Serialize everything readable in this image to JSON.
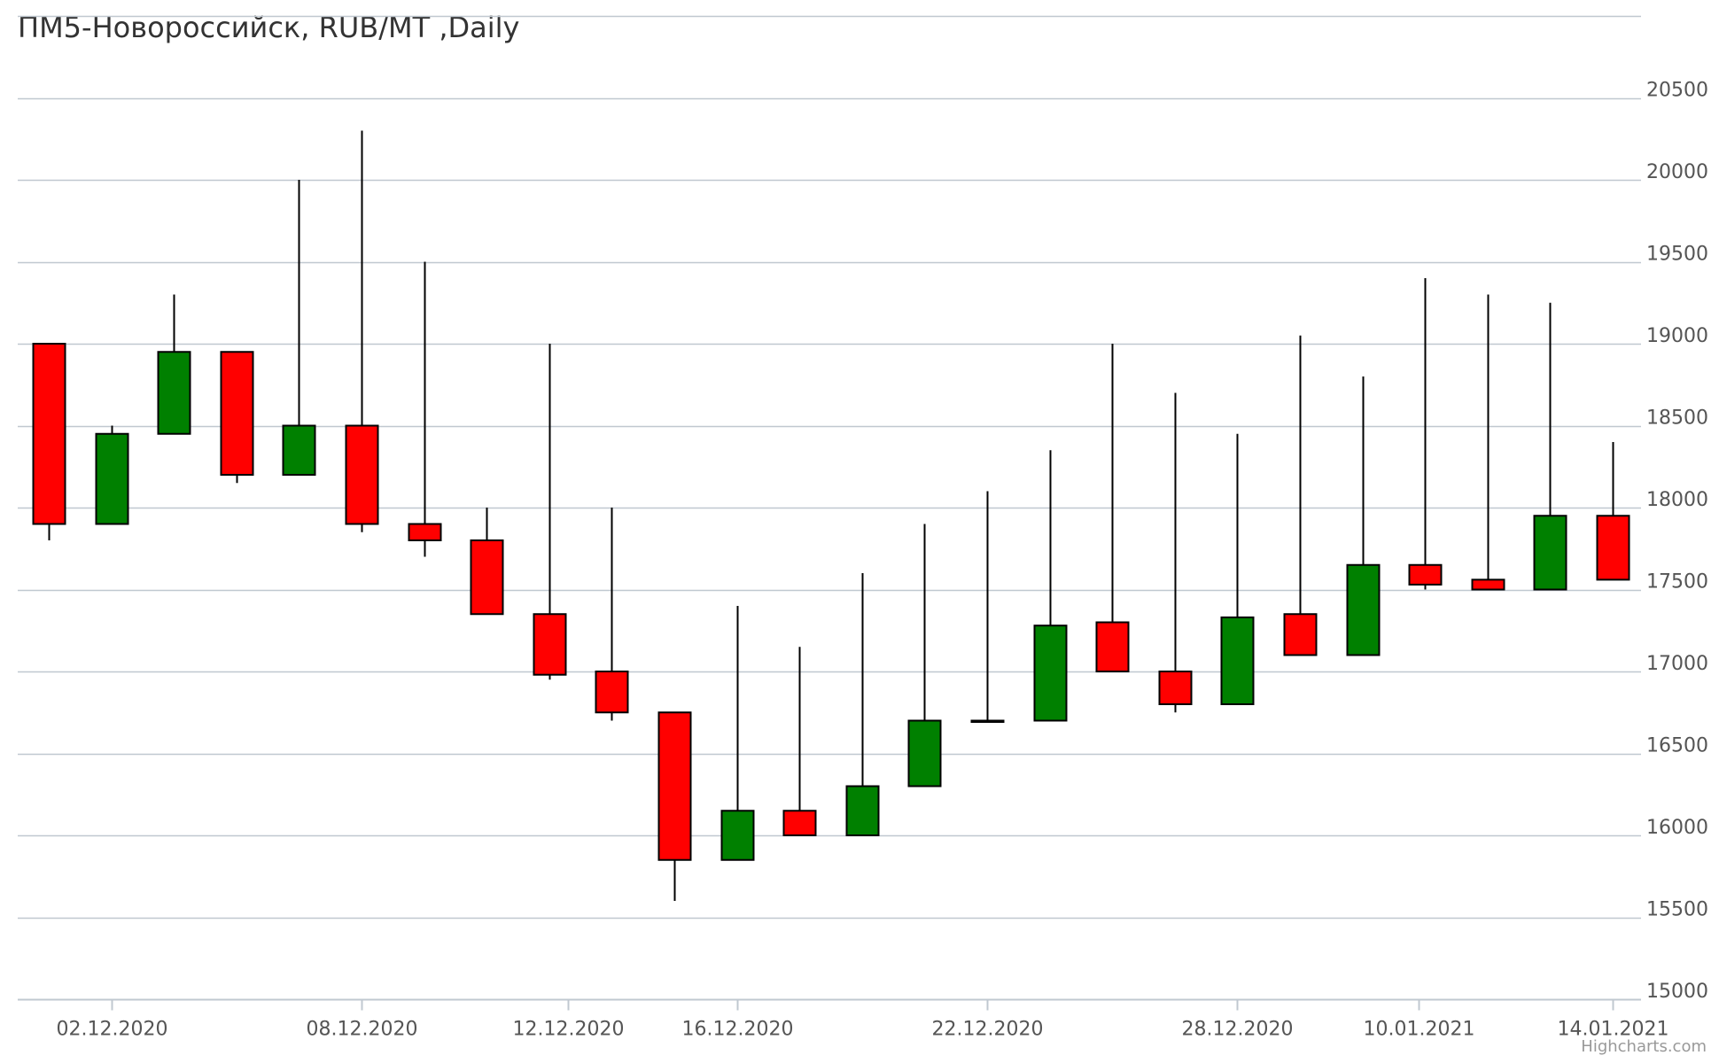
{
  "chart_data": {
    "type": "candlestick",
    "title": "ПМ5-Новороссийск, RUB/MT ,Daily",
    "credits": "Highcharts.com",
    "y_axis": {
      "min": 15000,
      "max": 21000,
      "ticks": [
        15000,
        15500,
        16000,
        16500,
        17000,
        17500,
        18000,
        18500,
        19000,
        19500,
        20000,
        20500
      ],
      "position": "right",
      "grid": true
    },
    "x_axis": {
      "ticks": [
        {
          "label": "02.12.2020",
          "index": 1
        },
        {
          "label": "08.12.2020",
          "index": 5
        },
        {
          "label": "12.12.2020",
          "index": 8.3
        },
        {
          "label": "16.12.2020",
          "index": 11
        },
        {
          "label": "22.12.2020",
          "index": 15
        },
        {
          "label": "28.12.2020",
          "index": 19
        },
        {
          "label": "10.01.2021",
          "index": 21.9
        },
        {
          "label": "14.01.2021",
          "index": 25
        }
      ]
    },
    "colors": {
      "up": "#008000",
      "down": "#ff0000",
      "line": "#000000",
      "grid": "#c0c8d0"
    },
    "candles": [
      {
        "open": 19000,
        "high": 19000,
        "low": 17800,
        "close": 17900
      },
      {
        "open": 17900,
        "high": 18500,
        "low": 17900,
        "close": 18450
      },
      {
        "open": 18450,
        "high": 19300,
        "low": 18450,
        "close": 18950
      },
      {
        "open": 18950,
        "high": 18950,
        "low": 18150,
        "close": 18200
      },
      {
        "open": 18200,
        "high": 20000,
        "low": 18200,
        "close": 18500
      },
      {
        "open": 18500,
        "high": 20300,
        "low": 17850,
        "close": 17900
      },
      {
        "open": 17900,
        "high": 19500,
        "low": 17700,
        "close": 17800
      },
      {
        "open": 17800,
        "high": 18000,
        "low": 17350,
        "close": 17350
      },
      {
        "open": 17350,
        "high": 19000,
        "low": 16950,
        "close": 16980
      },
      {
        "open": 17000,
        "high": 18000,
        "low": 16700,
        "close": 16750
      },
      {
        "open": 16750,
        "high": 16750,
        "low": 15600,
        "close": 15850
      },
      {
        "open": 15850,
        "high": 17400,
        "low": 15850,
        "close": 16150
      },
      {
        "open": 16150,
        "high": 17150,
        "low": 16000,
        "close": 16000
      },
      {
        "open": 16000,
        "high": 17600,
        "low": 16000,
        "close": 16300
      },
      {
        "open": 16300,
        "high": 17900,
        "low": 16300,
        "close": 16700
      },
      {
        "open": 16700,
        "high": 18100,
        "low": 16700,
        "close": 16700
      },
      {
        "open": 16700,
        "high": 18350,
        "low": 16700,
        "close": 17280
      },
      {
        "open": 17300,
        "high": 19000,
        "low": 17000,
        "close": 17000
      },
      {
        "open": 17000,
        "high": 18700,
        "low": 16750,
        "close": 16800
      },
      {
        "open": 16800,
        "high": 18450,
        "low": 16800,
        "close": 17330
      },
      {
        "open": 17350,
        "high": 19050,
        "low": 17100,
        "close": 17100
      },
      {
        "open": 17100,
        "high": 18800,
        "low": 17100,
        "close": 17650
      },
      {
        "open": 17650,
        "high": 19400,
        "low": 17500,
        "close": 17530
      },
      {
        "open": 17560,
        "high": 19300,
        "low": 17500,
        "close": 17500
      },
      {
        "open": 17500,
        "high": 19250,
        "low": 17500,
        "close": 17950
      },
      {
        "open": 17950,
        "high": 18400,
        "low": 17560,
        "close": 17560
      }
    ]
  }
}
